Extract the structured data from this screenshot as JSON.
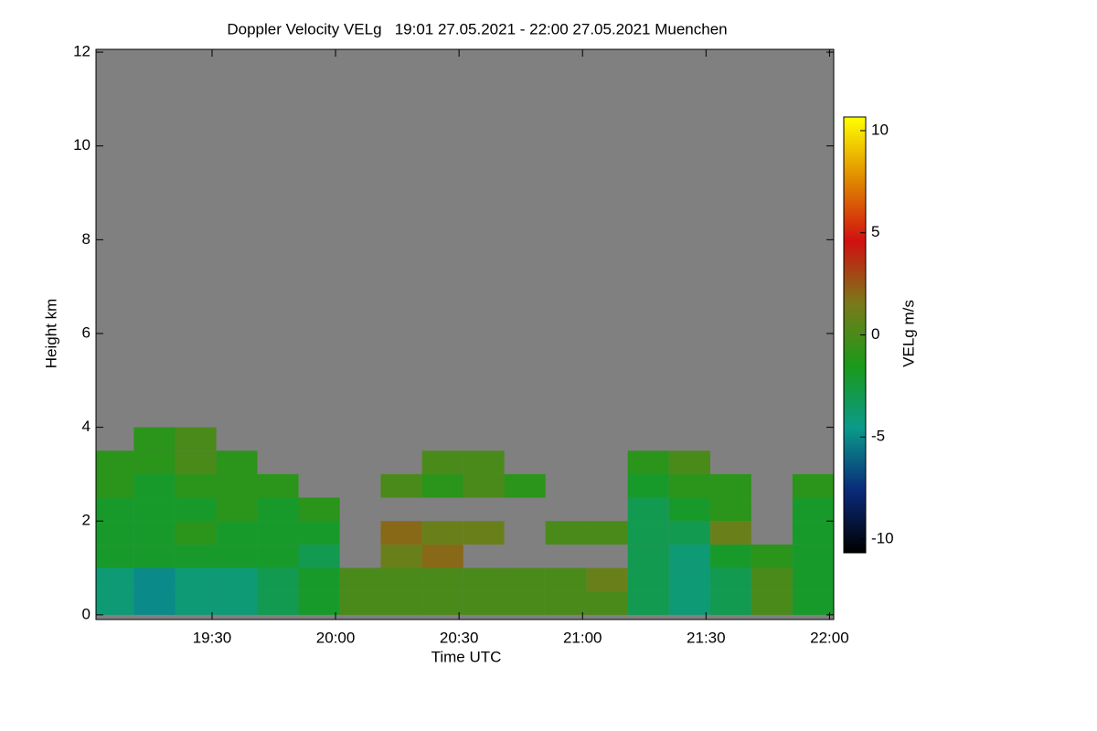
{
  "chart_data": {
    "type": "heatmap",
    "title": "Doppler Velocity VELg   19:01 27.05.2021 - 22:00 27.05.2021 Muenchen",
    "x_label": "Time UTC",
    "y_label": "Height km",
    "colorbar_label": "VELg m/s",
    "x_edges": [
      19.017,
      19.183,
      19.35,
      19.517,
      19.683,
      19.85,
      20.017,
      20.183,
      20.35,
      20.517,
      20.683,
      20.85,
      21.017,
      21.183,
      21.35,
      21.517,
      21.683,
      21.85,
      22.017
    ],
    "y_edges": [
      0,
      0.5,
      1,
      1.5,
      2,
      2.5,
      3,
      3.5,
      4
    ],
    "values": [
      [
        -4,
        -5,
        -4,
        -4,
        -3,
        -2,
        0,
        0,
        0,
        0,
        0,
        0,
        0,
        -3,
        -4,
        -3,
        0,
        -2
      ],
      [
        -4,
        -5,
        -4,
        -4,
        -3,
        -2,
        0,
        0,
        0,
        0,
        0,
        0,
        1,
        -3,
        -4,
        -3,
        0,
        -2
      ],
      [
        -2,
        -2,
        -2,
        -2,
        -2,
        -3,
        null,
        1,
        2,
        null,
        null,
        null,
        null,
        -3,
        -4,
        -2,
        -1,
        -2
      ],
      [
        -2,
        -2,
        -1,
        -2,
        -2,
        -2,
        null,
        2,
        1,
        1,
        null,
        0,
        0,
        -3,
        -3,
        1,
        null,
        -2
      ],
      [
        -2,
        -2,
        -2,
        -1,
        -2,
        -1,
        null,
        null,
        null,
        null,
        null,
        null,
        null,
        -3,
        -2,
        -1,
        null,
        -2
      ],
      [
        -1,
        -2,
        -1,
        -1,
        -1,
        null,
        null,
        0,
        -1,
        0,
        -1,
        null,
        null,
        -2,
        -1,
        -1,
        null,
        -1
      ],
      [
        -1,
        -1,
        0,
        -1,
        null,
        null,
        null,
        null,
        0,
        0,
        null,
        null,
        null,
        -1,
        0,
        null,
        null,
        null
      ],
      [
        null,
        -1,
        0,
        null,
        null,
        null,
        null,
        null,
        null,
        null,
        null,
        null,
        null,
        null,
        null,
        null,
        null,
        null
      ]
    ],
    "xlim": [
      19.03,
      22.017
    ],
    "xticks": [
      {
        "value": 19.5,
        "label": "19:30"
      },
      {
        "value": 20,
        "label": "20:00"
      },
      {
        "value": 20.5,
        "label": "20:30"
      },
      {
        "value": 21,
        "label": "21:00"
      },
      {
        "value": 21.5,
        "label": "21:30"
      },
      {
        "value": 22,
        "label": "22:00"
      }
    ],
    "ylim": [
      -0.1,
      12.06
    ],
    "yticks": [
      0,
      2,
      4,
      6,
      8,
      10,
      12
    ],
    "clim": [
      -10.67,
      10.67
    ],
    "cticks": [
      -10,
      -5,
      0,
      5,
      10
    ],
    "colormap": [
      "#000000",
      "#0a2a7a",
      "#0a9a8a",
      "#1a9a1a",
      "#7a7a1a",
      "#d01010",
      "#e08a00",
      "#ffff00"
    ],
    "background": "#808080"
  }
}
